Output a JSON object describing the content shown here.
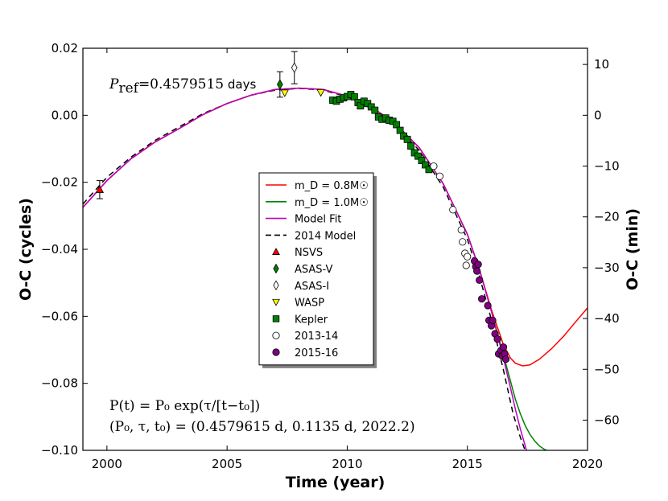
{
  "chart_data": {
    "type": "scatter",
    "xlabel": "Time (year)",
    "ylabel": "O-C (cycles)",
    "ylabel_right": "O-C (min)",
    "xlim": [
      1999,
      2020
    ],
    "ylim": [
      -0.1,
      0.02
    ],
    "ylim_right_min": [
      -65.94,
      13.19
    ],
    "x_ticks": [
      2000,
      2005,
      2010,
      2015,
      2020
    ],
    "x_tick_labels": [
      "2000",
      "2005",
      "2010",
      "2015",
      "2020"
    ],
    "y_ticks": [
      -0.1,
      -0.08,
      -0.06,
      -0.04,
      -0.02,
      0.0,
      0.02
    ],
    "y_tick_labels": [
      "−0.10",
      "−0.08",
      "−0.06",
      "−0.04",
      "−0.02",
      "0.00",
      "0.02"
    ],
    "y_right_ticks": [
      -60,
      -50,
      -40,
      -30,
      -20,
      -10,
      0,
      10
    ],
    "y_right_tick_labels": [
      "−60",
      "−50",
      "−40",
      "−30",
      "−20",
      "−10",
      "0",
      "10"
    ],
    "minutes_per_cycle": 659.45,
    "annotation_pref": {
      "symbol": "P",
      "subscript": "ref",
      "value": "=0.4579515",
      "unit": " days"
    },
    "annotation_formula": {
      "line1": "P(t) = P₀ exp(τ/[t−t₀])",
      "line2": "(P₀, τ, t₀) = (0.4579615 d, 0.1135 d, 2022.2)"
    },
    "legend": {
      "placement": "center",
      "entries": [
        {
          "label": "m_D = 0.8M☉",
          "kind": "line",
          "color": "#ff0000",
          "dash": "none"
        },
        {
          "label": "m_D = 1.0M☉",
          "kind": "line",
          "color": "#008000",
          "dash": "none"
        },
        {
          "label": "Model Fit",
          "kind": "line",
          "color": "#bf00bf",
          "dash": "none"
        },
        {
          "label": "2014 Model",
          "kind": "line",
          "color": "#000000",
          "dash": "dashed"
        },
        {
          "label": "NSVS",
          "kind": "marker",
          "marker": "triangle-up",
          "color": "#ff0000"
        },
        {
          "label": "ASAS-V",
          "kind": "marker",
          "marker": "diamond",
          "color": "#008000"
        },
        {
          "label": "ASAS-I",
          "kind": "marker",
          "marker": "diamond",
          "color": "#ffffff"
        },
        {
          "label": "WASP",
          "kind": "marker",
          "marker": "triangle-down",
          "color": "#ffff00"
        },
        {
          "label": "Kepler",
          "kind": "marker",
          "marker": "square",
          "color": "#008000"
        },
        {
          "label": "2013-14",
          "kind": "marker",
          "marker": "circle",
          "color": "#ffffff"
        },
        {
          "label": "2015-16",
          "kind": "marker",
          "marker": "circle",
          "color": "#800080"
        }
      ]
    },
    "curves": [
      {
        "name": "2014 Model",
        "color": "#000000",
        "dash": "dashed",
        "x": [
          1999,
          2000,
          2001,
          2002,
          2003,
          2004,
          2005,
          2006,
          2007,
          2008,
          2009,
          2010,
          2011,
          2012,
          2013,
          2014,
          2015,
          2015.5,
          2016,
          2016.5,
          2016.9,
          2017.2,
          2017.5
        ],
        "y": [
          -0.0265,
          -0.0185,
          -0.0125,
          -0.0075,
          -0.0035,
          0.0005,
          0.0035,
          0.006,
          0.0075,
          0.008,
          0.0075,
          0.0055,
          0.002,
          -0.003,
          -0.0105,
          -0.0215,
          -0.037,
          -0.048,
          -0.061,
          -0.076,
          -0.089,
          -0.096,
          -0.102
        ]
      },
      {
        "name": "m_D = 1.0M☉",
        "color": "#008000",
        "dash": "none",
        "x": [
          1999,
          2000,
          2001,
          2002,
          2003,
          2004,
          2005,
          2006,
          2007,
          2008,
          2009,
          2010,
          2011,
          2012,
          2013,
          2014,
          2015,
          2015.5,
          2016,
          2016.5,
          2016.8,
          2017.0,
          2017.2,
          2017.4,
          2017.6,
          2017.8,
          2018.0,
          2018.2,
          2018.4,
          2018.6
        ],
        "y": [
          -0.0275,
          -0.0195,
          -0.013,
          -0.008,
          -0.004,
          0.0002,
          0.0035,
          0.006,
          0.0077,
          0.0081,
          0.0077,
          0.0057,
          0.0025,
          -0.0025,
          -0.0097,
          -0.0205,
          -0.0355,
          -0.046,
          -0.0585,
          -0.0715,
          -0.0795,
          -0.0848,
          -0.089,
          -0.0925,
          -0.0952,
          -0.0972,
          -0.0987,
          -0.0997,
          -0.1003,
          -0.1006
        ]
      },
      {
        "name": "m_D = 0.8M☉",
        "color": "#ff0000",
        "dash": "none",
        "x": [
          1999,
          2000,
          2001,
          2002,
          2003,
          2004,
          2005,
          2006,
          2007,
          2008,
          2009,
          2010,
          2011,
          2012,
          2013,
          2014,
          2015,
          2015.5,
          2016,
          2016.5,
          2016.8,
          2017.0,
          2017.3,
          2017.6,
          2018.0,
          2018.5,
          2019.0,
          2019.5,
          2020.0
        ],
        "y": [
          -0.0275,
          -0.0195,
          -0.013,
          -0.008,
          -0.004,
          0.0002,
          0.0035,
          0.006,
          0.0077,
          0.0081,
          0.0077,
          0.0057,
          0.0025,
          -0.0025,
          -0.0097,
          -0.0205,
          -0.0355,
          -0.046,
          -0.058,
          -0.0685,
          -0.0725,
          -0.074,
          -0.0748,
          -0.0745,
          -0.0728,
          -0.0697,
          -0.066,
          -0.0617,
          -0.0575
        ]
      },
      {
        "name": "Model Fit",
        "color": "#bf00bf",
        "dash": "none",
        "x": [
          1999,
          2000,
          2001,
          2002,
          2003,
          2004,
          2005,
          2006,
          2007,
          2008,
          2009,
          2010,
          2011,
          2012,
          2013,
          2014,
          2015,
          2015.5,
          2016,
          2016.5,
          2016.8,
          2017.0,
          2017.2,
          2017.4,
          2017.6
        ],
        "y": [
          -0.0275,
          -0.0195,
          -0.013,
          -0.008,
          -0.004,
          0.0002,
          0.0035,
          0.006,
          0.0077,
          0.0081,
          0.0077,
          0.0057,
          0.0025,
          -0.0025,
          -0.0097,
          -0.0205,
          -0.0355,
          -0.046,
          -0.0585,
          -0.0725,
          -0.0815,
          -0.0878,
          -0.0935,
          -0.0985,
          -0.1035
        ]
      }
    ],
    "series": [
      {
        "name": "NSVS",
        "marker": "triangle-up",
        "color": "#ff0000",
        "x": [
          1999.7
        ],
        "y": [
          -0.0222
        ],
        "yerr": [
          0.0027
        ]
      },
      {
        "name": "ASAS-V",
        "marker": "diamond",
        "color": "#008000",
        "x": [
          2007.2
        ],
        "y": [
          0.0092
        ],
        "yerr": [
          0.0038
        ]
      },
      {
        "name": "ASAS-I",
        "marker": "diamond",
        "color": "#ffffff",
        "x": [
          2007.8
        ],
        "y": [
          0.0142
        ],
        "yerr": [
          0.0048
        ]
      },
      {
        "name": "WASP",
        "marker": "triangle-down",
        "color": "#ffff00",
        "x": [
          2007.4,
          2008.9
        ],
        "y": [
          0.0067,
          0.0068
        ]
      },
      {
        "name": "Kepler",
        "marker": "square",
        "color": "#008000",
        "x": [
          2009.4,
          2009.55,
          2009.7,
          2009.85,
          2010.0,
          2010.15,
          2010.3,
          2010.45,
          2010.55,
          2010.7,
          2010.85,
          2011.0,
          2011.15,
          2011.3,
          2011.45,
          2011.6,
          2011.75,
          2011.9,
          2012.05,
          2012.2,
          2012.35,
          2012.5,
          2012.65,
          2012.8,
          2012.95,
          2013.1,
          2013.25,
          2013.4
        ],
        "y": [
          0.0045,
          0.0042,
          0.0048,
          0.0052,
          0.0056,
          0.0062,
          0.0055,
          0.0038,
          0.0028,
          0.0042,
          0.0035,
          0.0025,
          0.0015,
          -0.0005,
          -0.0012,
          -0.0008,
          -0.0015,
          -0.0018,
          -0.0028,
          -0.0045,
          -0.0062,
          -0.0072,
          -0.0092,
          -0.0112,
          -0.0122,
          -0.0135,
          -0.0148,
          -0.0162
        ]
      },
      {
        "name": "2013-14",
        "marker": "circle",
        "color": "#ffffff",
        "x": [
          2013.6,
          2013.85,
          2014.4,
          2014.75,
          2014.8,
          2014.9,
          2014.95,
          2015.0
        ],
        "y": [
          -0.0152,
          -0.0182,
          -0.0282,
          -0.0342,
          -0.0378,
          -0.0412,
          -0.0448,
          -0.0422
        ]
      },
      {
        "name": "2015-16",
        "marker": "circle",
        "color": "#800080",
        "x": [
          2015.3,
          2015.35,
          2015.4,
          2015.45,
          2015.5,
          2015.6,
          2015.85,
          2015.9,
          2016.0,
          2016.05,
          2016.15,
          2016.25,
          2016.3,
          2016.4,
          2016.45,
          2016.5,
          2016.55,
          2016.6
        ],
        "y": [
          -0.0435,
          -0.0452,
          -0.0465,
          -0.0445,
          -0.0492,
          -0.0548,
          -0.0568,
          -0.0612,
          -0.0628,
          -0.0612,
          -0.0652,
          -0.0668,
          -0.0712,
          -0.0702,
          -0.0718,
          -0.0692,
          -0.0712,
          -0.0728
        ]
      }
    ]
  }
}
